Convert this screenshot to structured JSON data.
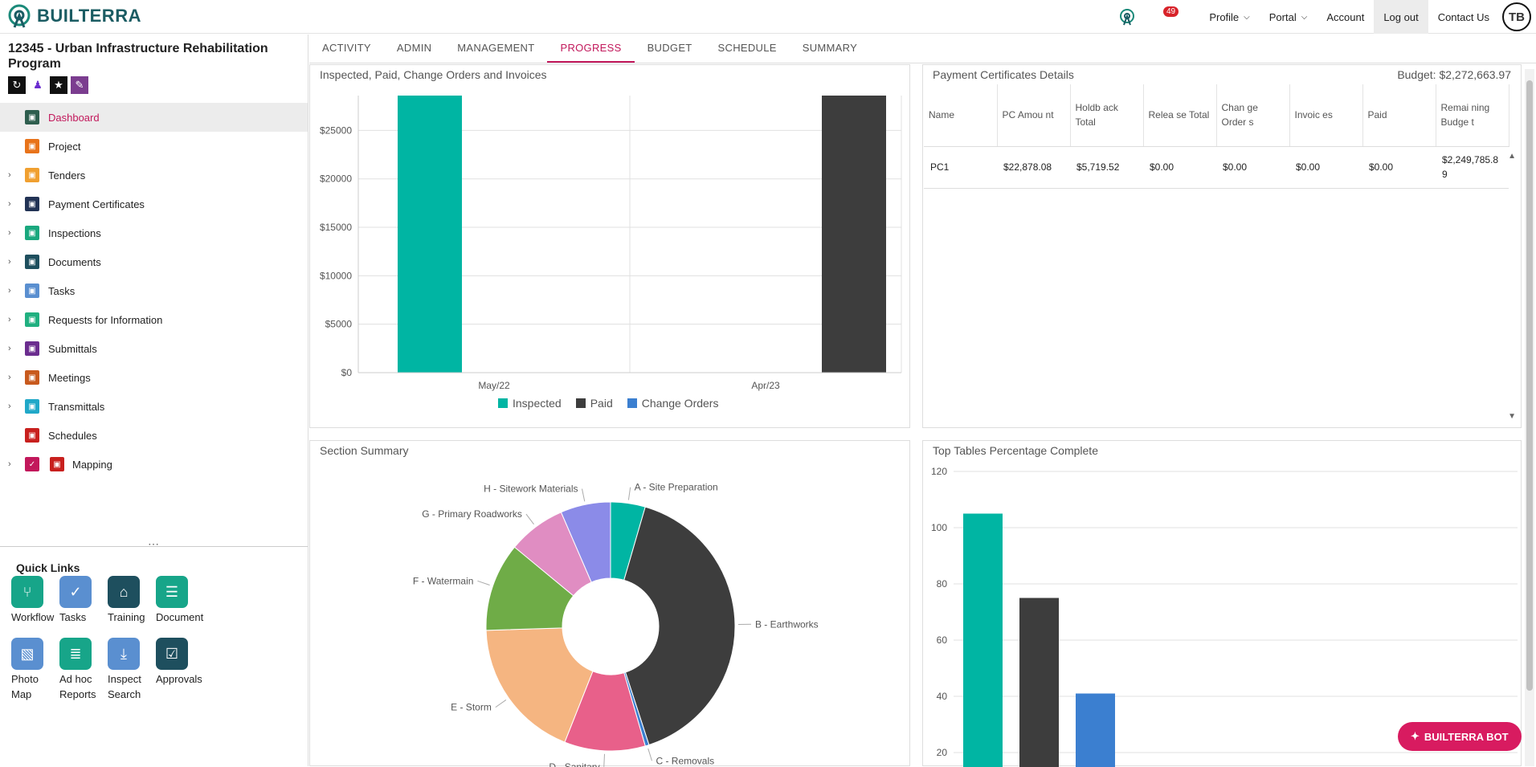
{
  "brand": {
    "name": "BUILTERRA"
  },
  "nav": {
    "badge": "49",
    "profile": "Profile",
    "portal": "Portal",
    "account": "Account",
    "logout": "Log out",
    "contact": "Contact Us",
    "avatar": "TB"
  },
  "project": {
    "title": "12345 - Urban Infrastructure Rehabilitation Program"
  },
  "menu": [
    {
      "label": "Dashboard",
      "color": "#2e5e4e"
    },
    {
      "label": "Project",
      "color": "#e8731a"
    },
    {
      "label": "Tenders",
      "color": "#f0a030"
    },
    {
      "label": "Payment Certificates",
      "color": "#223355"
    },
    {
      "label": "Inspections",
      "color": "#1aa87e"
    },
    {
      "label": "Documents",
      "color": "#1e4f5e"
    },
    {
      "label": "Tasks",
      "color": "#5a8fd0"
    },
    {
      "label": "Requests for Information",
      "color": "#20b080"
    },
    {
      "label": "Submittals",
      "color": "#6b2d8f"
    },
    {
      "label": "Meetings",
      "color": "#c85a1e"
    },
    {
      "label": "Transmittals",
      "color": "#20a8c8"
    },
    {
      "label": "Schedules",
      "color": "#c8201e"
    },
    {
      "label": "Mapping",
      "color": "#c8201e"
    }
  ],
  "quick_links": {
    "title": "Quick Links",
    "items": [
      {
        "label": "Workflow",
        "color": "#17a589"
      },
      {
        "label": "Tasks",
        "color": "#5a8fd0"
      },
      {
        "label": "Training",
        "color": "#1e4f5e"
      },
      {
        "label": "Document",
        "color": "#17a589"
      },
      {
        "label": "Photo Map",
        "color": "#5a8fd0"
      },
      {
        "label": "Ad hoc Reports",
        "color": "#17a589"
      },
      {
        "label": "Inspect Search",
        "color": "#5a8fd0"
      },
      {
        "label": "Approvals",
        "color": "#1e4f5e"
      }
    ]
  },
  "tabs": [
    "ACTIVITY",
    "ADMIN",
    "MANAGEMENT",
    "PROGRESS",
    "BUDGET",
    "SCHEDULE",
    "SUMMARY"
  ],
  "cards": {
    "inspected": "Inspected, Paid, Change Orders and Invoices",
    "payment": "Payment Certificates Details",
    "budget": "Budget: $2,272,663.97",
    "section": "Section Summary",
    "top": "Top Tables Percentage Complete"
  },
  "payment_table": {
    "headers": [
      "Name",
      "PC Amou nt",
      "Holdb ack Total",
      "Relea se Total",
      "Chan ge Order s",
      "Invoic es",
      "Paid",
      "Remai ning Budge t"
    ],
    "rows": [
      [
        "PC1",
        "$22,878.08",
        "$5,719.52",
        "$0.00",
        "$0.00",
        "$0.00",
        "$0.00",
        "$2,249,785.8 9"
      ]
    ]
  },
  "bot": {
    "label": "BUILTERRA BOT"
  },
  "chart_data": [
    {
      "type": "bar",
      "title": "Inspected, Paid, Change Orders and Invoices",
      "categories": [
        "May/22",
        "Apr/23"
      ],
      "series": [
        {
          "name": "Inspected",
          "color": "#00b5a3",
          "values": [
            28600,
            0
          ]
        },
        {
          "name": "Paid",
          "color": "#3d3d3d",
          "values": [
            0,
            28600
          ]
        },
        {
          "name": "Change Orders",
          "color": "#3b7fd0",
          "values": [
            0,
            0
          ]
        }
      ],
      "yticks": [
        "$0",
        "$5000",
        "$10000",
        "$15000",
        "$20000",
        "$25000"
      ],
      "ylim": [
        0,
        28600
      ]
    },
    {
      "type": "pie",
      "title": "Section Summary",
      "slices": [
        {
          "label": "A - Site Preparation",
          "value": 4.5,
          "color": "#00b5a3"
        },
        {
          "label": "B - Earthworks",
          "value": 40.5,
          "color": "#3d3d3d"
        },
        {
          "label": "C - Removals",
          "value": 0.5,
          "color": "#3b7fd0"
        },
        {
          "label": "D - Sanitary",
          "value": 10.5,
          "color": "#e8608a"
        },
        {
          "label": "E - Storm",
          "value": 18.5,
          "color": "#f5b581"
        },
        {
          "label": "F - Watermain",
          "value": 11.5,
          "color": "#6fac47"
        },
        {
          "label": "G - Primary Roadworks",
          "value": 7.5,
          "color": "#e08dc2"
        },
        {
          "label": "H - Sitework Materials",
          "value": 6.5,
          "color": "#8b8be8"
        }
      ]
    },
    {
      "type": "bar",
      "title": "Top Tables Percentage Complete",
      "values": [
        105,
        75,
        41
      ],
      "colors": [
        "#00b5a3",
        "#3d3d3d",
        "#3b7fd0"
      ],
      "yticks": [
        "20",
        "40",
        "60",
        "80",
        "100",
        "120"
      ],
      "ylim": [
        0,
        120
      ]
    }
  ]
}
